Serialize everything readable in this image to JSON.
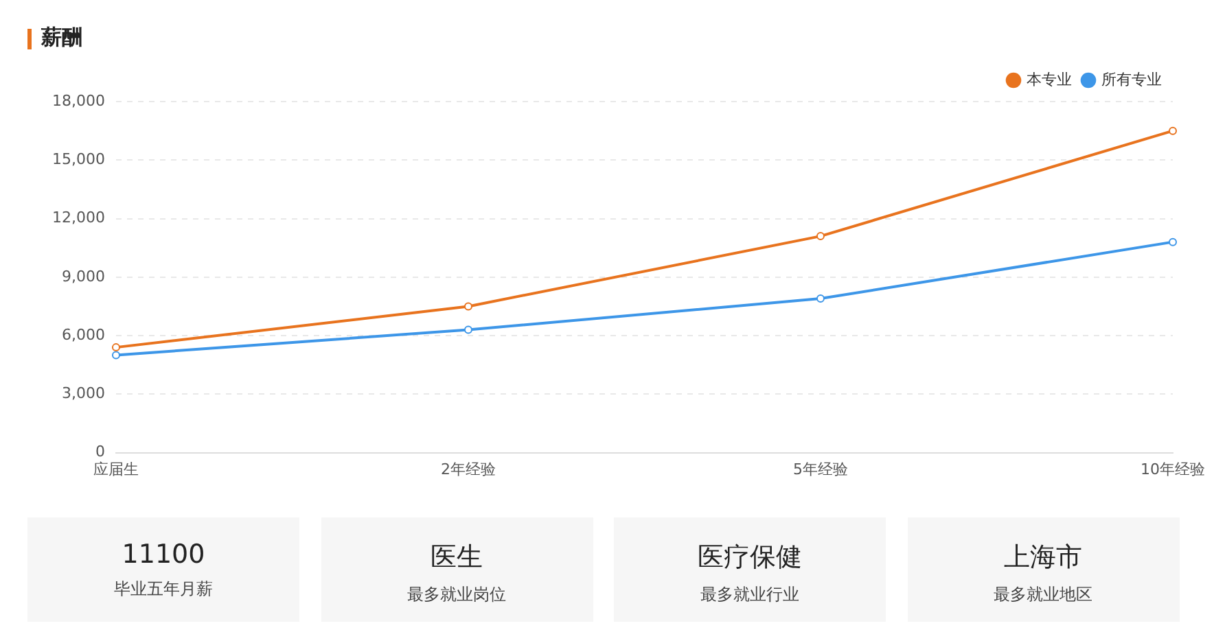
{
  "chart_data": [
    {
      "type": "line",
      "title": "薪酬",
      "categories": [
        "应届生",
        "2年经验",
        "5年经验",
        "10年经验"
      ],
      "series": [
        {
          "name": "本专业",
          "color": "#e8731e",
          "values": [
            5400,
            7500,
            11100,
            16500
          ]
        },
        {
          "name": "所有专业",
          "color": "#3d96e8",
          "values": [
            5000,
            6300,
            7900,
            10800
          ]
        }
      ],
      "ylim": [
        0,
        18000
      ],
      "yticks": [
        {
          "value": 0,
          "label": "0"
        },
        {
          "value": 3000,
          "label": "3,000"
        },
        {
          "value": 6000,
          "label": "6,000"
        },
        {
          "value": 9000,
          "label": "9,000"
        },
        {
          "value": 12000,
          "label": "12,000"
        },
        {
          "value": 15000,
          "label": "15,000"
        },
        {
          "value": 18000,
          "label": "18,000"
        }
      ],
      "grid": "y",
      "legend": "top right",
      "marker": "circle",
      "line_style": "solid"
    },
    {
      "type": "other",
      "annotations": [
        "11100",
        "毕业五年月薪",
        "医生",
        "最多就业岗位",
        "医疗保健",
        "最多就业行业",
        "上海市",
        "最多就业地区"
      ]
    }
  ]
}
